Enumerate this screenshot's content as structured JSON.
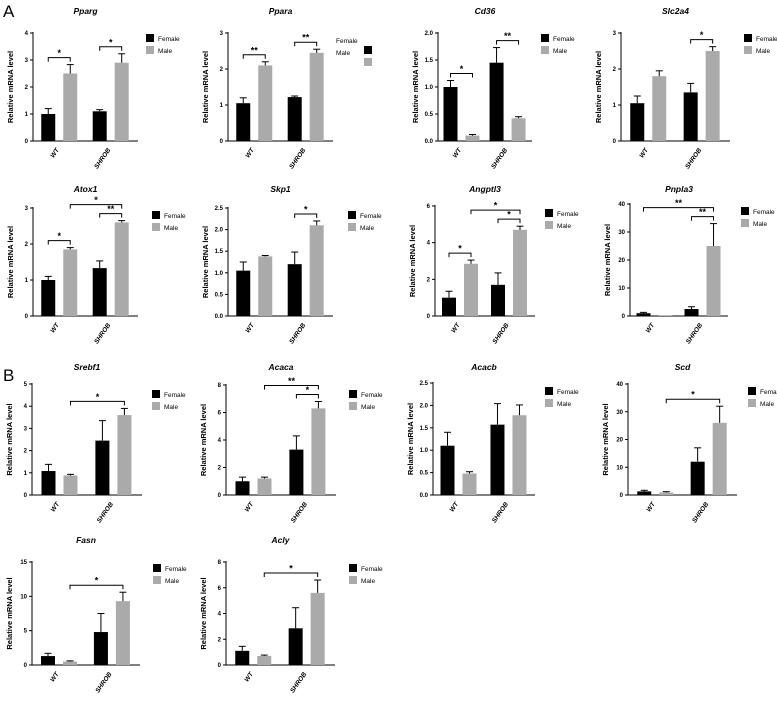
{
  "panel_labels": {
    "A": "A",
    "B": "B"
  },
  "chart_data": [
    {
      "gene": "Pparg",
      "type": "bar",
      "title": "Pparg",
      "ylabel": "Relative mRNA level",
      "categories": [
        "WT",
        "SHROB"
      ],
      "ylim": [
        0,
        4
      ],
      "yticks": [
        "0",
        "1",
        "2",
        "3",
        "4"
      ],
      "series": [
        {
          "name": "Female",
          "color": "#000000",
          "values": [
            1.0,
            1.1
          ],
          "errors": [
            0.2,
            0.06
          ]
        },
        {
          "name": "Male",
          "color": "#aaaaaa",
          "values": [
            2.5,
            2.9
          ],
          "errors": [
            0.33,
            0.33
          ]
        }
      ],
      "annotations": [
        {
          "text": "*",
          "bracket": [
            "WT-Female",
            "WT-Male"
          ]
        },
        {
          "text": "*",
          "bracket": [
            "SHROB-Female",
            "SHROB-Male"
          ]
        }
      ],
      "legend": "right"
    },
    {
      "gene": "Ppara",
      "type": "bar",
      "title": "Ppara",
      "ylabel": "Relative mRNA level",
      "categories": [
        "WT",
        "SHROB"
      ],
      "ylim": [
        0,
        3
      ],
      "yticks": [
        "0",
        "1",
        "2",
        "3"
      ],
      "series": [
        {
          "name": "Female",
          "color": "#000000",
          "values": [
            1.05,
            1.22
          ],
          "errors": [
            0.15,
            0.03
          ]
        },
        {
          "name": "Male",
          "color": "#aaaaaa",
          "values": [
            2.1,
            2.45
          ],
          "errors": [
            0.1,
            0.1
          ]
        }
      ],
      "annotations": [
        {
          "text": "**",
          "bracket": [
            "WT-Female",
            "WT-Male"
          ]
        },
        {
          "text": "**",
          "bracket": [
            "SHROB-Female",
            "SHROB-Male"
          ]
        }
      ],
      "legend": "right-overlapped"
    },
    {
      "gene": "Cd36",
      "type": "bar",
      "title": "Cd36",
      "ylabel": "Relative mRNA level",
      "categories": [
        "WT",
        "SHROB"
      ],
      "ylim": [
        0,
        2.0
      ],
      "yticks": [
        "0.0",
        "0.5",
        "1.0",
        "1.5",
        "2.0"
      ],
      "series": [
        {
          "name": "Female",
          "color": "#000000",
          "values": [
            1.0,
            1.45
          ],
          "errors": [
            0.12,
            0.28
          ]
        },
        {
          "name": "Male",
          "color": "#aaaaaa",
          "values": [
            0.1,
            0.42
          ],
          "errors": [
            0.02,
            0.03
          ]
        }
      ],
      "annotations": [
        {
          "text": "*",
          "bracket": [
            "WT-Female",
            "WT-Male"
          ]
        },
        {
          "text": "**",
          "bracket": [
            "SHROB-Female",
            "SHROB-Male"
          ]
        }
      ],
      "legend": "right"
    },
    {
      "gene": "Slc2a4",
      "type": "bar",
      "title": "Slc2a4",
      "ylabel": "Relative mRNA level",
      "categories": [
        "WT",
        "SHROB"
      ],
      "ylim": [
        0,
        3
      ],
      "yticks": [
        "0",
        "1",
        "2",
        "3"
      ],
      "series": [
        {
          "name": "Female",
          "color": "#000000",
          "values": [
            1.05,
            1.35
          ],
          "errors": [
            0.2,
            0.25
          ]
        },
        {
          "name": "Male",
          "color": "#aaaaaa",
          "values": [
            1.8,
            2.5
          ],
          "errors": [
            0.15,
            0.12
          ]
        }
      ],
      "annotations": [
        {
          "text": "*",
          "bracket": [
            "SHROB-Female",
            "SHROB-Male"
          ]
        }
      ],
      "legend": "right"
    },
    {
      "gene": "Atox1",
      "type": "bar",
      "title": "Atox1",
      "ylabel": "Relative mRNA level",
      "categories": [
        "WT",
        "SHROB"
      ],
      "ylim": [
        0,
        3
      ],
      "yticks": [
        "0",
        "1",
        "2",
        "3"
      ],
      "series": [
        {
          "name": "Female",
          "color": "#000000",
          "values": [
            1.0,
            1.33
          ],
          "errors": [
            0.1,
            0.2
          ]
        },
        {
          "name": "Male",
          "color": "#aaaaaa",
          "values": [
            1.85,
            2.6
          ],
          "errors": [
            0.05,
            0.05
          ]
        }
      ],
      "annotations": [
        {
          "text": "*",
          "bracket": [
            "WT-Female",
            "WT-Male"
          ]
        },
        {
          "text": "**",
          "bracket": [
            "SHROB-Female",
            "SHROB-Male"
          ]
        },
        {
          "text": "*",
          "bracket": [
            "WT-Male",
            "SHROB-Male"
          ]
        }
      ],
      "legend": "right"
    },
    {
      "gene": "Skp1",
      "type": "bar",
      "title": "Skp1",
      "ylabel": "Relative mRNA level",
      "categories": [
        "WT",
        "SHROB"
      ],
      "ylim": [
        0,
        2.5
      ],
      "yticks": [
        "0.0",
        "0.5",
        "1.0",
        "1.5",
        "2.0",
        "2.5"
      ],
      "series": [
        {
          "name": "Female",
          "color": "#000000",
          "values": [
            1.05,
            1.2
          ],
          "errors": [
            0.2,
            0.28
          ]
        },
        {
          "name": "Male",
          "color": "#aaaaaa",
          "values": [
            1.38,
            2.1
          ],
          "errors": [
            0.02,
            0.1
          ]
        }
      ],
      "annotations": [
        {
          "text": "*",
          "bracket": [
            "SHROB-Female",
            "SHROB-Male"
          ]
        }
      ],
      "legend": "right"
    },
    {
      "gene": "Angptl3",
      "type": "bar",
      "title": "Angptl3",
      "ylabel": "Relative mRNA level",
      "categories": [
        "WT",
        "SHROB"
      ],
      "ylim": [
        0,
        6
      ],
      "yticks": [
        "0",
        "2",
        "4",
        "6"
      ],
      "series": [
        {
          "name": "Female",
          "color": "#000000",
          "values": [
            1.0,
            1.7
          ],
          "errors": [
            0.35,
            0.65
          ]
        },
        {
          "name": "Male",
          "color": "#aaaaaa",
          "values": [
            2.85,
            4.7
          ],
          "errors": [
            0.2,
            0.2
          ]
        }
      ],
      "annotations": [
        {
          "text": "*",
          "bracket": [
            "WT-Female",
            "WT-Male"
          ]
        },
        {
          "text": "*",
          "bracket": [
            "SHROB-Female",
            "SHROB-Male"
          ]
        },
        {
          "text": "*",
          "bracket": [
            "WT-Male",
            "SHROB-Male"
          ]
        }
      ],
      "legend": "right"
    },
    {
      "gene": "Pnpla3",
      "type": "bar",
      "title": "Pnpla3",
      "ylabel": "Relative mRNA level",
      "categories": [
        "WT",
        "SHROB"
      ],
      "ylim": [
        0,
        40
      ],
      "yticks": [
        "0",
        "10",
        "20",
        "30",
        "40"
      ],
      "series": [
        {
          "name": "Female",
          "color": "#000000",
          "values": [
            1.0,
            2.5
          ],
          "errors": [
            0.3,
            0.8
          ]
        },
        {
          "name": "Male",
          "color": "#aaaaaa",
          "values": [
            0.05,
            25
          ],
          "errors": [
            0,
            8
          ]
        }
      ],
      "annotations": [
        {
          "text": "**",
          "bracket": [
            "SHROB-Female",
            "SHROB-Male"
          ]
        },
        {
          "text": "**",
          "bracket": [
            "WT-Female",
            "SHROB-Male"
          ]
        }
      ],
      "legend": "right"
    },
    {
      "gene": "Srebf1",
      "type": "bar",
      "title": "Srebf1",
      "ylabel": "Relative mRNA level",
      "categories": [
        "WT",
        "SHROB"
      ],
      "ylim": [
        0,
        5
      ],
      "yticks": [
        "0",
        "1",
        "2",
        "3",
        "4",
        "5"
      ],
      "series": [
        {
          "name": "Female",
          "color": "#000000",
          "values": [
            1.08,
            2.45
          ],
          "errors": [
            0.3,
            0.9
          ]
        },
        {
          "name": "Male",
          "color": "#aaaaaa",
          "values": [
            0.88,
            3.6
          ],
          "errors": [
            0.05,
            0.3
          ]
        }
      ],
      "annotations": [
        {
          "text": "*",
          "bracket": [
            "WT-Male",
            "SHROB-Male"
          ]
        }
      ],
      "legend": "right"
    },
    {
      "gene": "Acaca",
      "type": "bar",
      "title": "Acaca",
      "ylabel": "Relative mRNA level",
      "categories": [
        "WT",
        "SHROB"
      ],
      "ylim": [
        0,
        8
      ],
      "yticks": [
        "0",
        "2",
        "4",
        "6",
        "8"
      ],
      "series": [
        {
          "name": "Female",
          "color": "#000000",
          "values": [
            1.0,
            3.3
          ],
          "errors": [
            0.3,
            1.0
          ]
        },
        {
          "name": "Male",
          "color": "#aaaaaa",
          "values": [
            1.2,
            6.3
          ],
          "errors": [
            0.1,
            0.5
          ]
        }
      ],
      "annotations": [
        {
          "text": "*",
          "bracket": [
            "SHROB-Female",
            "SHROB-Male"
          ]
        },
        {
          "text": "**",
          "bracket": [
            "WT-Male",
            "SHROB-Male"
          ]
        }
      ],
      "legend": "right"
    },
    {
      "gene": "Acacb",
      "type": "bar",
      "title": "Acacb",
      "ylabel": "Relative mRNA level",
      "categories": [
        "WT",
        "SHROB"
      ],
      "ylim": [
        0,
        2.5
      ],
      "yticks": [
        "0.0",
        "0.5",
        "1.0",
        "1.5",
        "2.0",
        "2.5"
      ],
      "series": [
        {
          "name": "Female",
          "color": "#000000",
          "values": [
            1.1,
            1.57
          ],
          "errors": [
            0.3,
            0.47
          ]
        },
        {
          "name": "Male",
          "color": "#aaaaaa",
          "values": [
            0.48,
            1.78
          ],
          "errors": [
            0.04,
            0.23
          ]
        }
      ],
      "annotations": [],
      "legend": "right"
    },
    {
      "gene": "Scd",
      "type": "bar",
      "title": "Scd",
      "ylabel": "Relative mRNA level",
      "categories": [
        "WT",
        "SHROB"
      ],
      "ylim": [
        0,
        40
      ],
      "yticks": [
        "0",
        "10",
        "20",
        "30",
        "40"
      ],
      "series": [
        {
          "name": "Female",
          "color": "#000000",
          "values": [
            1.3,
            12
          ],
          "errors": [
            0.4,
            5
          ]
        },
        {
          "name": "Male",
          "color": "#aaaaaa",
          "values": [
            0.9,
            26
          ],
          "errors": [
            0.3,
            6
          ]
        }
      ],
      "annotations": [
        {
          "text": "*",
          "bracket": [
            "WT-Male",
            "SHROB-Male"
          ]
        }
      ],
      "legend": "right"
    },
    {
      "gene": "Fasn",
      "type": "bar",
      "title": "Fasn",
      "ylabel": "Relative mRNA level",
      "categories": [
        "WT",
        "SHROB"
      ],
      "ylim": [
        0,
        15
      ],
      "yticks": [
        "0",
        "5",
        "10",
        "15"
      ],
      "series": [
        {
          "name": "Female",
          "color": "#000000",
          "values": [
            1.3,
            4.8
          ],
          "errors": [
            0.4,
            2.7
          ]
        },
        {
          "name": "Male",
          "color": "#aaaaaa",
          "values": [
            0.5,
            9.3
          ],
          "errors": [
            0.1,
            1.3
          ]
        }
      ],
      "annotations": [
        {
          "text": "*",
          "bracket": [
            "WT-Male",
            "SHROB-Male"
          ]
        }
      ],
      "legend": "right"
    },
    {
      "gene": "Acly",
      "type": "bar",
      "title": "Acly",
      "ylabel": "Relative mRNA level",
      "categories": [
        "WT",
        "SHROB"
      ],
      "ylim": [
        0,
        8
      ],
      "yticks": [
        "0",
        "2",
        "4",
        "6",
        "8"
      ],
      "series": [
        {
          "name": "Female",
          "color": "#000000",
          "values": [
            1.1,
            2.85
          ],
          "errors": [
            0.35,
            1.6
          ]
        },
        {
          "name": "Male",
          "color": "#aaaaaa",
          "values": [
            0.7,
            5.6
          ],
          "errors": [
            0.07,
            1.0
          ]
        }
      ],
      "annotations": [
        {
          "text": "*",
          "bracket": [
            "WT-Male",
            "SHROB-Male"
          ]
        }
      ],
      "legend": "right"
    }
  ]
}
